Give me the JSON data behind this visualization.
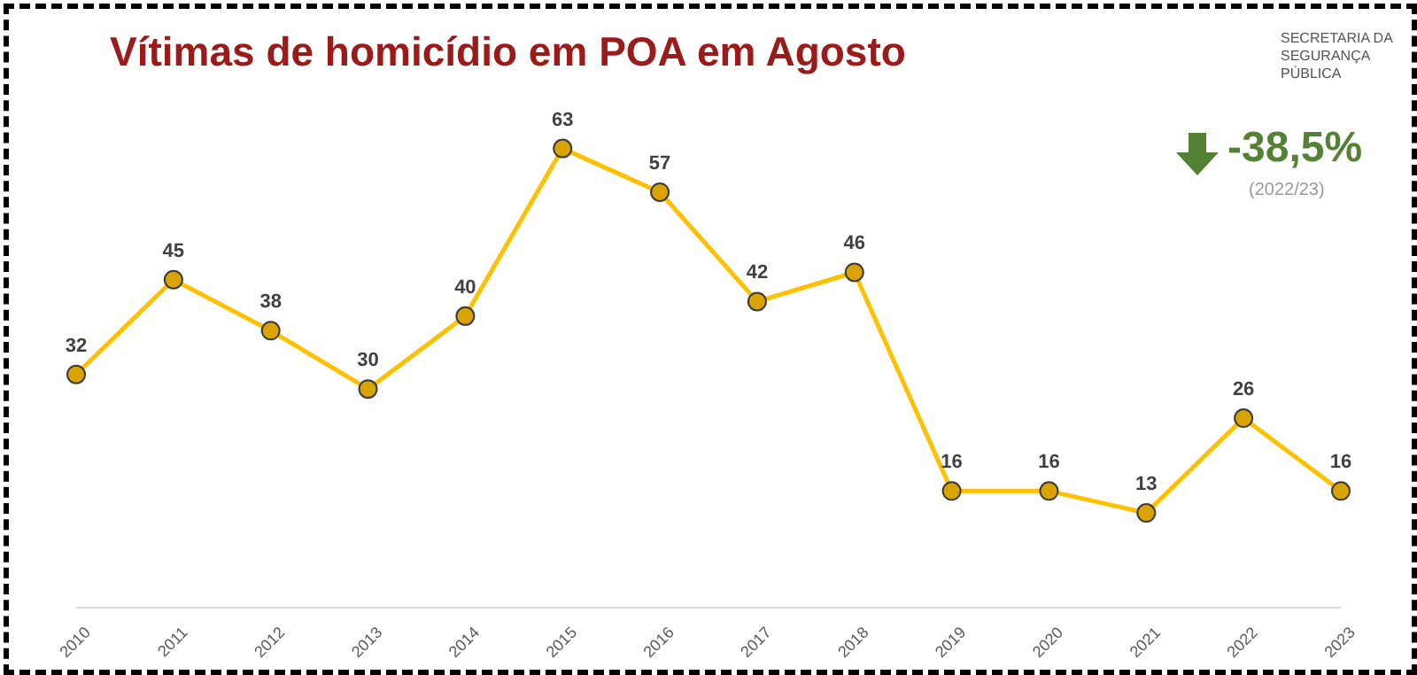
{
  "chart_data": {
    "type": "line",
    "title": "Vítimas de homicídio em POA em Agosto",
    "categories": [
      "2010",
      "2011",
      "2012",
      "2013",
      "2014",
      "2015",
      "2016",
      "2017",
      "2018",
      "2019",
      "2020",
      "2021",
      "2022",
      "2023"
    ],
    "values": [
      32,
      45,
      38,
      30,
      40,
      63,
      57,
      42,
      46,
      16,
      16,
      13,
      26,
      16
    ],
    "color": "#ffc000",
    "marker": "circle",
    "data_labels": true,
    "annotations": [
      "-38,5%",
      "(2022/23)",
      "SECRETARIA DA SEGURANÇA PÚBLICA"
    ]
  }
}
